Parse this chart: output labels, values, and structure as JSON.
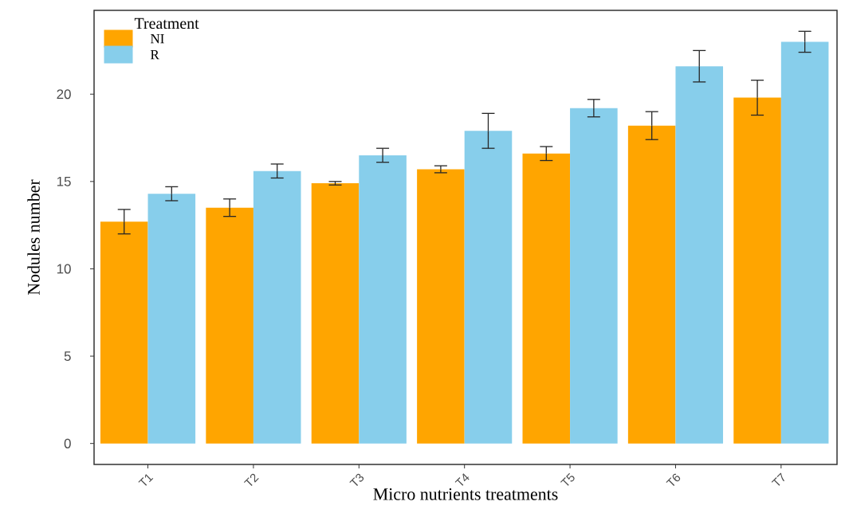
{
  "chart_data": {
    "type": "bar",
    "xlabel": "Micro nutrients treatments",
    "ylabel": "Nodules number",
    "legend_title": "Treatment",
    "categories": [
      "T1",
      "T2",
      "T3",
      "T4",
      "T5",
      "T6",
      "T7"
    ],
    "series": [
      {
        "name": "NI",
        "color": "#ffa500",
        "values": [
          12.7,
          13.5,
          14.9,
          15.7,
          16.6,
          18.2,
          19.8
        ],
        "errors": [
          0.7,
          0.5,
          0.1,
          0.2,
          0.4,
          0.8,
          1.0
        ]
      },
      {
        "name": "R",
        "color": "#87ceeb",
        "values": [
          14.3,
          15.6,
          16.5,
          17.9,
          19.2,
          21.6,
          23.0
        ],
        "errors": [
          0.4,
          0.4,
          0.4,
          1.0,
          0.5,
          0.9,
          0.6
        ]
      }
    ],
    "ylim": [
      -1.2,
      24.8
    ],
    "yticks": [
      0,
      5,
      10,
      15,
      20
    ],
    "grid": false,
    "legend": "top left"
  }
}
